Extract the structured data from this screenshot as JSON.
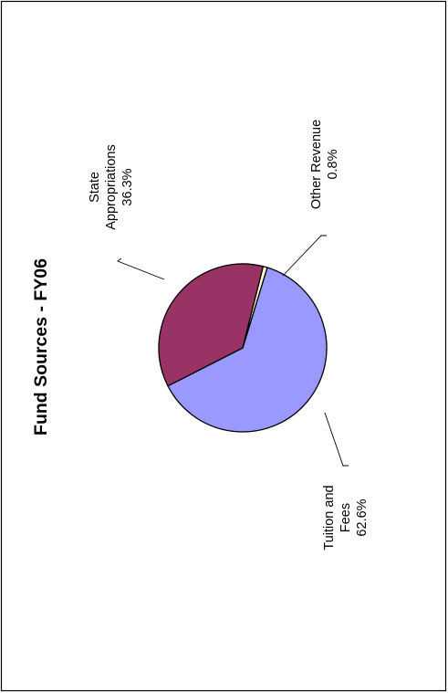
{
  "chart_data": {
    "type": "pie",
    "title": "Fund Sources - FY06",
    "orientation": "rotated-90-counterclockwise",
    "slices": [
      {
        "name": "Tuition and Fees",
        "name_lines": [
          "Tuition and",
          "Fees"
        ],
        "value": 62.6,
        "label": "62.6%",
        "color": "#9999FF"
      },
      {
        "name": "State Appropriations",
        "name_lines": [
          "State",
          "Appropriations"
        ],
        "value": 36.3,
        "label": "36.3%",
        "color": "#993366"
      },
      {
        "name": "Other Revenue",
        "name_lines": [
          "Other Revenue"
        ],
        "value": 0.8,
        "label": "0.8%",
        "color": "#FFFFCC"
      }
    ]
  }
}
